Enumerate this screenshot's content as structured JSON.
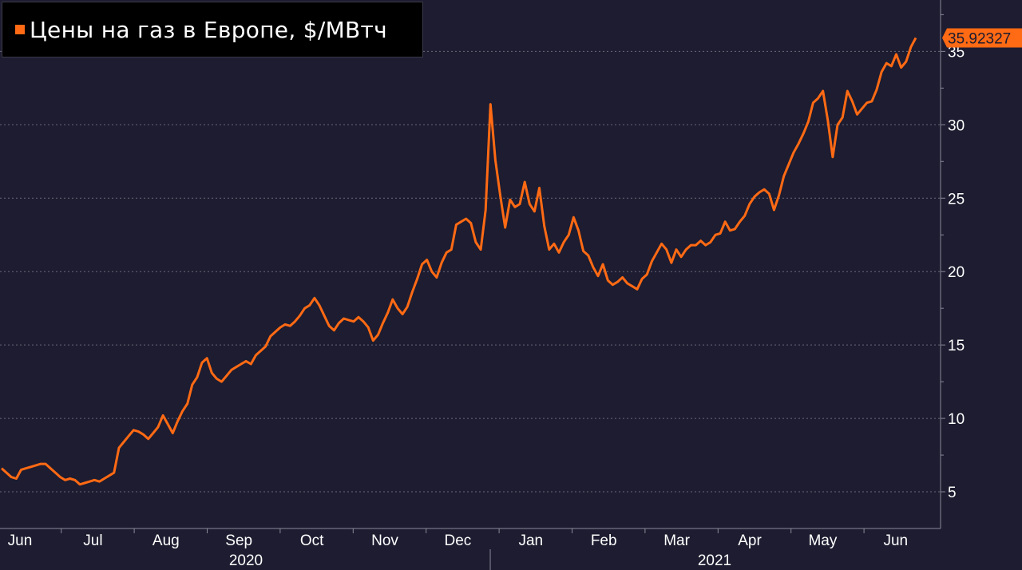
{
  "colors": {
    "background": "#1d1c30",
    "line": "#ff6a14",
    "legend_bg": "#000000",
    "grid": "#6a6a7a"
  },
  "chart_data": {
    "type": "line",
    "title": "Цены на газ в Европе, $/МВтч",
    "ylim": [
      2.5,
      38.5
    ],
    "yticks": [
      5,
      10,
      15,
      20,
      25,
      30,
      35
    ],
    "y_axis_side": "right",
    "grid": true,
    "legend_position": "top-left",
    "month_ticks": [
      "Jun",
      "Jul",
      "Aug",
      "Sep",
      "Oct",
      "Nov",
      "Dec",
      "Jan",
      "Feb",
      "Mar",
      "Apr",
      "May",
      "Jun"
    ],
    "year_labels": [
      "2020",
      "2021"
    ],
    "last_value_label": "35.92327",
    "series": [
      {
        "values": [
          6.6,
          6.3,
          6.0,
          5.9,
          6.5,
          6.6,
          6.7,
          6.8,
          6.9,
          6.9,
          6.6,
          6.3,
          6.0,
          5.8,
          5.9,
          5.8,
          5.5,
          5.6,
          5.7,
          5.8,
          5.7,
          5.9,
          6.1,
          6.3,
          8.0,
          8.4,
          8.8,
          9.2,
          9.1,
          8.9,
          8.6,
          9.0,
          9.4,
          10.2,
          9.6,
          9.0,
          9.8,
          10.5,
          11.0,
          12.3,
          12.8,
          13.8,
          14.1,
          13.1,
          12.7,
          12.5,
          12.9,
          13.3,
          13.5,
          13.7,
          13.9,
          13.7,
          14.3,
          14.6,
          14.9,
          15.6,
          15.9,
          16.2,
          16.4,
          16.3,
          16.6,
          17.0,
          17.5,
          17.7,
          18.2,
          17.7,
          17.0,
          16.3,
          16.0,
          16.5,
          16.8,
          16.7,
          16.6,
          16.9,
          16.6,
          16.2,
          15.3,
          15.7,
          16.5,
          17.2,
          18.1,
          17.5,
          17.1,
          17.6,
          18.6,
          19.5,
          20.5,
          20.8,
          20.0,
          19.6,
          20.6,
          21.3,
          21.5,
          23.2,
          23.4,
          23.6,
          23.3,
          22.0,
          21.5,
          24.2,
          31.4,
          27.6,
          25.2,
          23.0,
          24.9,
          24.4,
          24.6,
          26.1,
          24.6,
          24.1,
          25.7,
          23.1,
          21.5,
          21.9,
          21.3,
          22.0,
          22.5,
          23.7,
          22.8,
          21.4,
          21.1,
          20.3,
          19.7,
          20.5,
          19.4,
          19.1,
          19.3,
          19.6,
          19.2,
          19.0,
          18.8,
          19.5,
          19.8,
          20.7,
          21.3,
          21.9,
          21.5,
          20.6,
          21.5,
          21.0,
          21.5,
          21.8,
          21.8,
          22.1,
          21.8,
          22.0,
          22.5,
          22.6,
          23.4,
          22.8,
          22.9,
          23.4,
          23.8,
          24.6,
          25.1,
          25.4,
          25.6,
          25.3,
          24.2,
          25.2,
          26.5,
          27.3,
          28.1,
          28.7,
          29.4,
          30.2,
          31.5,
          31.8,
          32.3,
          30.3,
          27.8,
          30.0,
          30.5,
          32.3,
          31.6,
          30.7,
          31.1,
          31.5,
          31.6,
          32.4,
          33.6,
          34.2,
          34.0,
          34.8,
          33.9,
          34.3,
          35.3,
          35.92
        ]
      }
    ]
  }
}
